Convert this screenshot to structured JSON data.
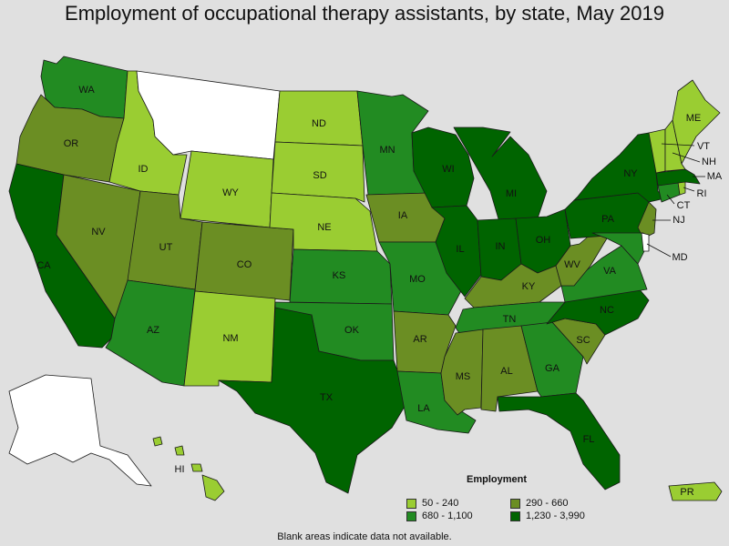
{
  "title": "Employment of occupational therapy assistants, by state, May 2019",
  "legend": {
    "title": "Employment",
    "items": [
      {
        "label": "50 - 240",
        "color": "#9acd32"
      },
      {
        "label": "290 - 660",
        "color": "#6b8e23"
      },
      {
        "label": "680 - 1,100",
        "color": "#228b22"
      },
      {
        "label": "1,230 - 3,990",
        "color": "#006400"
      }
    ]
  },
  "footnote": "Blank areas indicate data not available.",
  "colors": {
    "no_data": "#ffffff",
    "tier1": "#9acd32",
    "tier2": "#6b8e23",
    "tier3": "#228b22",
    "tier4": "#006400",
    "background": "#e0e0e0"
  },
  "states": {
    "WA": {
      "label": "WA",
      "tier": 3
    },
    "OR": {
      "label": "OR",
      "tier": 2
    },
    "CA": {
      "label": "CA",
      "tier": 4
    },
    "NV": {
      "label": "NV",
      "tier": 2
    },
    "ID": {
      "label": "ID",
      "tier": 1
    },
    "MT": {
      "label": "",
      "tier": 0
    },
    "WY": {
      "label": "WY",
      "tier": 1
    },
    "UT": {
      "label": "UT",
      "tier": 2
    },
    "AZ": {
      "label": "AZ",
      "tier": 3
    },
    "CO": {
      "label": "CO",
      "tier": 2
    },
    "NM": {
      "label": "NM",
      "tier": 1
    },
    "ND": {
      "label": "ND",
      "tier": 1
    },
    "SD": {
      "label": "SD",
      "tier": 1
    },
    "NE": {
      "label": "NE",
      "tier": 1
    },
    "KS": {
      "label": "KS",
      "tier": 3
    },
    "OK": {
      "label": "OK",
      "tier": 3
    },
    "TX": {
      "label": "TX",
      "tier": 4
    },
    "MN": {
      "label": "MN",
      "tier": 3
    },
    "IA": {
      "label": "IA",
      "tier": 2
    },
    "MO": {
      "label": "MO",
      "tier": 3
    },
    "AR": {
      "label": "AR",
      "tier": 2
    },
    "LA": {
      "label": "LA",
      "tier": 3
    },
    "WI": {
      "label": "WI",
      "tier": 4
    },
    "IL": {
      "label": "IL",
      "tier": 4
    },
    "MI": {
      "label": "MI",
      "tier": 4
    },
    "IN": {
      "label": "IN",
      "tier": 4
    },
    "OH": {
      "label": "OH",
      "tier": 4
    },
    "KY": {
      "label": "KY",
      "tier": 2
    },
    "TN": {
      "label": "TN",
      "tier": 3
    },
    "MS": {
      "label": "MS",
      "tier": 2
    },
    "AL": {
      "label": "AL",
      "tier": 2
    },
    "GA": {
      "label": "GA",
      "tier": 3
    },
    "FL": {
      "label": "FL",
      "tier": 4
    },
    "SC": {
      "label": "SC",
      "tier": 2
    },
    "NC": {
      "label": "NC",
      "tier": 4
    },
    "VA": {
      "label": "VA",
      "tier": 3
    },
    "WV": {
      "label": "WV",
      "tier": 2
    },
    "PA": {
      "label": "PA",
      "tier": 4
    },
    "NY": {
      "label": "NY",
      "tier": 4
    },
    "NJ": {
      "label": "NJ",
      "tier": 2
    },
    "MD": {
      "label": "MD",
      "tier": 3
    },
    "DE": {
      "label": "",
      "tier": 0
    },
    "CT": {
      "label": "CT",
      "tier": 3
    },
    "RI": {
      "label": "RI",
      "tier": 1
    },
    "MA": {
      "label": "MA",
      "tier": 4
    },
    "VT": {
      "label": "VT",
      "tier": 1
    },
    "NH": {
      "label": "NH",
      "tier": 1
    },
    "ME": {
      "label": "ME",
      "tier": 1
    },
    "AK": {
      "label": "",
      "tier": 0
    },
    "HI": {
      "label": "HI",
      "tier": 1
    },
    "PR": {
      "label": "PR",
      "tier": 1
    }
  }
}
